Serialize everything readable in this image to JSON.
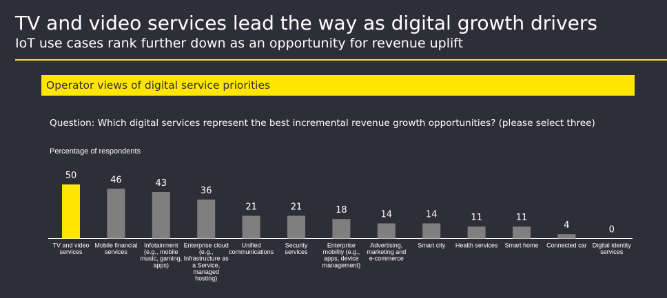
{
  "header": {
    "title": "TV and video services lead the way as digital growth drivers",
    "subtitle": "IoT use cases rank further down as an opportunity for revenue uplift"
  },
  "banner": {
    "label": "Operator views of digital service priorities"
  },
  "question": "Question: Which digital services represent the best incremental revenue growth opportunities? (please select three)",
  "colors": {
    "background": "#2e2e38",
    "accent": "#ffe600",
    "bar": "#7f7f7f",
    "text": "#ffffff"
  },
  "chart_data": {
    "type": "bar",
    "title": "",
    "ylabel": "Percentage of respondents",
    "xlabel": "",
    "ylim": [
      0,
      50
    ],
    "grid": false,
    "categories": [
      [
        "TV and video",
        "services"
      ],
      [
        "Mobile financial",
        "services"
      ],
      [
        "Infotainment",
        "(e.g., mobile",
        "music, gaming,",
        "apps)"
      ],
      [
        "Enterprise cloud",
        "(e.g.,",
        "Infrastructure as",
        "a Service,",
        "managed",
        "hosting)"
      ],
      [
        "Unified",
        "communications"
      ],
      [
        "Security",
        "services"
      ],
      [
        "Enterprise",
        "mobility (e.g.,",
        "apps, device",
        "management)"
      ],
      [
        "Advertising,",
        "marketing and",
        "e-commerce"
      ],
      [
        "Smart city"
      ],
      [
        "Health services"
      ],
      [
        "Smart home"
      ],
      [
        "Connected car"
      ],
      [
        "Digital identity",
        "services"
      ]
    ],
    "values": [
      50,
      46,
      43,
      36,
      21,
      21,
      18,
      14,
      14,
      11,
      11,
      4,
      0
    ],
    "highlight_index": 0
  }
}
